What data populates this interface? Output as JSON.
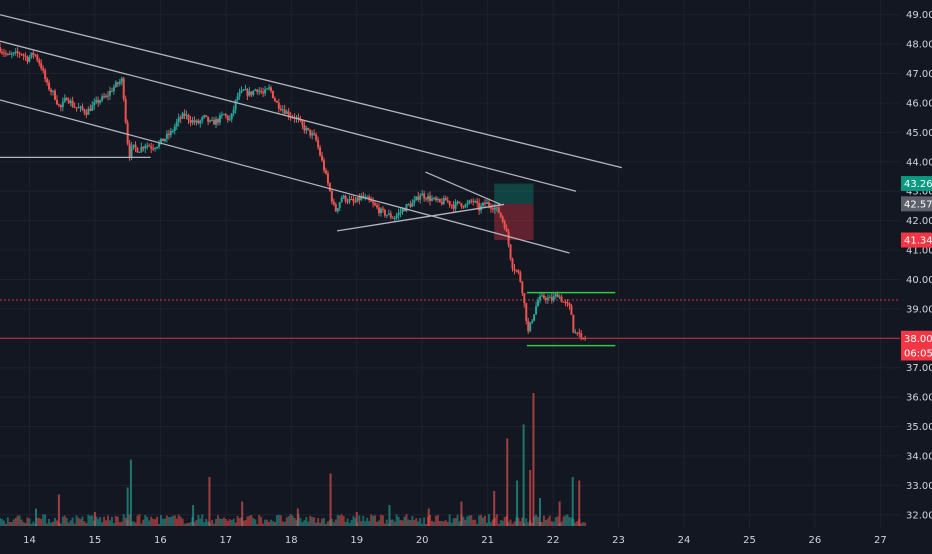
{
  "chart_data": {
    "type": "candlestick",
    "theme": "dark",
    "grid": true,
    "x_axis": {
      "ticks": [
        {
          "label": "14",
          "day": 14
        },
        {
          "label": "15",
          "day": 15
        },
        {
          "label": "16",
          "day": 16
        },
        {
          "label": "17",
          "day": 17
        },
        {
          "label": "18",
          "day": 18
        },
        {
          "label": "19",
          "day": 19
        },
        {
          "label": "20",
          "day": 20
        },
        {
          "label": "21",
          "day": 21
        },
        {
          "label": "22",
          "day": 22
        },
        {
          "label": "23",
          "day": 23
        },
        {
          "label": "24",
          "day": 24
        },
        {
          "label": "25",
          "day": 25
        },
        {
          "label": "26",
          "day": 26
        },
        {
          "label": "27",
          "day": 27
        }
      ],
      "range": [
        13.55,
        27.3
      ]
    },
    "y_axis": {
      "ticks": [
        "32.00",
        "33.00",
        "34.00",
        "35.00",
        "36.00",
        "37.00",
        "38.00",
        "39.00",
        "40.00",
        "41.00",
        "42.00",
        "43.00",
        "44.00",
        "45.00",
        "46.00",
        "47.00",
        "48.00",
        "49.00"
      ],
      "range": [
        31.55,
        49.5
      ]
    },
    "price_path": [
      [
        13.55,
        47.9
      ],
      [
        13.7,
        47.6
      ],
      [
        13.9,
        47.7
      ],
      [
        14.0,
        47.5
      ],
      [
        14.1,
        47.7
      ],
      [
        14.2,
        47.3
      ],
      [
        14.3,
        46.6
      ],
      [
        14.4,
        46.3
      ],
      [
        14.5,
        45.8
      ],
      [
        14.6,
        46.2
      ],
      [
        14.7,
        45.9
      ],
      [
        14.8,
        45.8
      ],
      [
        14.9,
        45.7
      ],
      [
        15.0,
        45.9
      ],
      [
        15.1,
        46.1
      ],
      [
        15.2,
        46.2
      ],
      [
        15.3,
        46.5
      ],
      [
        15.4,
        46.7
      ],
      [
        15.45,
        46.8
      ],
      [
        15.5,
        45.4
      ],
      [
        15.55,
        44.2
      ],
      [
        15.6,
        44.5
      ],
      [
        15.7,
        44.4
      ],
      [
        15.8,
        44.6
      ],
      [
        15.9,
        44.5
      ],
      [
        16.0,
        44.6
      ],
      [
        16.1,
        44.8
      ],
      [
        16.2,
        45.0
      ],
      [
        16.3,
        45.4
      ],
      [
        16.4,
        45.6
      ],
      [
        16.5,
        45.4
      ],
      [
        16.6,
        45.3
      ],
      [
        16.7,
        45.5
      ],
      [
        16.8,
        45.3
      ],
      [
        16.9,
        45.4
      ],
      [
        17.0,
        45.6
      ],
      [
        17.1,
        45.4
      ],
      [
        17.2,
        46.2
      ],
      [
        17.3,
        46.4
      ],
      [
        17.4,
        46.3
      ],
      [
        17.5,
        46.5
      ],
      [
        17.6,
        46.3
      ],
      [
        17.7,
        46.5
      ],
      [
        17.8,
        46.0
      ],
      [
        17.9,
        45.8
      ],
      [
        18.0,
        45.6
      ],
      [
        18.1,
        45.5
      ],
      [
        18.2,
        45.2
      ],
      [
        18.3,
        45.0
      ],
      [
        18.4,
        44.8
      ],
      [
        18.55,
        43.6
      ],
      [
        18.7,
        42.3
      ],
      [
        18.8,
        42.8
      ],
      [
        18.9,
        42.7
      ],
      [
        19.0,
        42.6
      ],
      [
        19.1,
        42.8
      ],
      [
        19.2,
        42.7
      ],
      [
        19.3,
        42.5
      ],
      [
        19.4,
        42.3
      ],
      [
        19.5,
        42.2
      ],
      [
        19.6,
        42.1
      ],
      [
        19.7,
        42.3
      ],
      [
        19.8,
        42.5
      ],
      [
        19.9,
        42.6
      ],
      [
        20.0,
        42.9
      ],
      [
        20.1,
        42.8
      ],
      [
        20.2,
        42.7
      ],
      [
        20.3,
        42.6
      ],
      [
        20.4,
        42.7
      ],
      [
        20.5,
        42.5
      ],
      [
        20.6,
        42.6
      ],
      [
        20.7,
        42.5
      ],
      [
        20.8,
        42.7
      ],
      [
        20.9,
        42.4
      ],
      [
        21.0,
        42.6
      ],
      [
        21.1,
        42.5
      ],
      [
        21.2,
        42.3
      ],
      [
        21.3,
        41.8
      ],
      [
        21.35,
        41.2
      ],
      [
        21.4,
        40.5
      ],
      [
        21.5,
        40.2
      ],
      [
        21.55,
        39.8
      ],
      [
        21.6,
        39.0
      ],
      [
        21.65,
        38.2
      ],
      [
        21.7,
        38.6
      ],
      [
        21.8,
        39.3
      ],
      [
        21.9,
        39.4
      ],
      [
        22.0,
        39.3
      ],
      [
        22.1,
        39.5
      ],
      [
        22.2,
        39.2
      ],
      [
        22.3,
        39.0
      ],
      [
        22.35,
        38.1
      ],
      [
        22.4,
        38.3
      ],
      [
        22.45,
        37.9
      ],
      [
        22.5,
        38.0
      ]
    ],
    "channel_lines": [
      {
        "from": [
          13.55,
          49.0
        ],
        "to": [
          23.05,
          43.8
        ]
      },
      {
        "from": [
          13.55,
          48.1
        ],
        "to": [
          22.35,
          43.0
        ]
      },
      {
        "from": [
          13.55,
          46.1
        ],
        "to": [
          22.25,
          40.9
        ]
      }
    ],
    "support_lines": [
      {
        "from": [
          13.55,
          44.15
        ],
        "to": [
          15.85,
          44.15
        ]
      },
      {
        "from": [
          18.7,
          41.65
        ],
        "to": [
          21.25,
          42.55
        ]
      },
      {
        "from": [
          20.05,
          43.65
        ],
        "to": [
          21.2,
          42.55
        ]
      }
    ],
    "range_lines": [
      {
        "from": [
          21.6,
          39.55
        ],
        "to": [
          22.95,
          39.55
        ]
      },
      {
        "from": [
          21.6,
          37.75
        ],
        "to": [
          22.95,
          37.75
        ]
      }
    ],
    "position_tool": {
      "x_start": 21.1,
      "x_end": 21.7,
      "entry": 42.57,
      "target": 43.26,
      "stop": 41.34
    },
    "horizontal_lines": [
      {
        "price": 39.3,
        "style": "dotted"
      },
      {
        "price": 38.0,
        "style": "solid"
      }
    ],
    "price_labels": [
      {
        "text": "43.26",
        "price": 43.26,
        "color": "#089981"
      },
      {
        "text": "42.57",
        "price": 42.57,
        "color": "#5d606b"
      },
      {
        "text": "41.34",
        "price": 41.34,
        "color": "#f23645"
      },
      {
        "text": "38.00",
        "price": 38.0,
        "color": "#f23645"
      },
      {
        "text": "06:05",
        "price": 37.5,
        "color": "#f23645"
      }
    ],
    "volume_spikes": [
      [
        14.1,
        0.25
      ],
      [
        14.45,
        0.45
      ],
      [
        15.0,
        0.2
      ],
      [
        15.5,
        0.55
      ],
      [
        15.55,
        0.95
      ],
      [
        16.5,
        0.3
      ],
      [
        16.75,
        0.7
      ],
      [
        17.25,
        0.35
      ],
      [
        18.1,
        0.25
      ],
      [
        18.6,
        0.75
      ],
      [
        19.0,
        0.2
      ],
      [
        19.5,
        0.3
      ],
      [
        20.1,
        0.25
      ],
      [
        20.6,
        0.35
      ],
      [
        21.1,
        0.5
      ],
      [
        21.3,
        1.25
      ],
      [
        21.45,
        0.65
      ],
      [
        21.55,
        1.45
      ],
      [
        21.65,
        0.8
      ],
      [
        21.7,
        1.9
      ],
      [
        21.8,
        0.4
      ],
      [
        22.1,
        0.35
      ],
      [
        22.3,
        0.7
      ],
      [
        22.4,
        0.65
      ]
    ],
    "colors": {
      "up": "#26a69a",
      "down": "#ef5350",
      "channel": "#b2b5be",
      "range": "#2ecc40",
      "hline": "#f23645",
      "grid": "#1e222d",
      "axis_text": "#d1d4dc",
      "background": "#131722"
    }
  }
}
